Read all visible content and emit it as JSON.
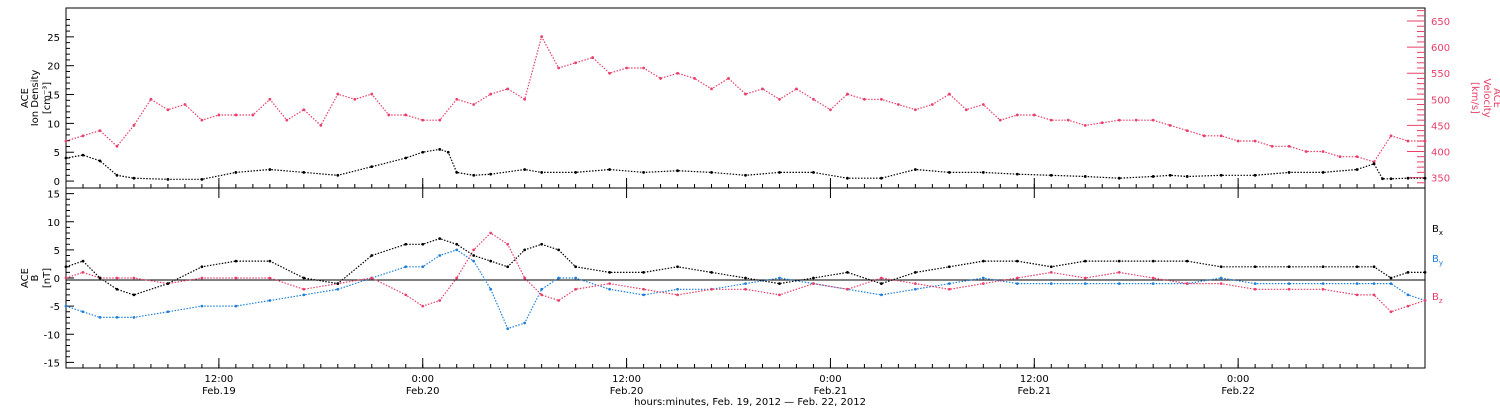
{
  "colors": {
    "density": "#000000",
    "velocity": "#e8406a",
    "bx": "#000000",
    "by": "#1f7fd8",
    "bz": "#e8406a"
  },
  "chart_data": [
    {
      "type": "scatter",
      "panel": "top",
      "ylabel_left": [
        "ACE",
        "Ion Density",
        "[cm⁻³]"
      ],
      "ylabel_right": [
        "ACE",
        "Velocity",
        "[km/s]"
      ],
      "left_axis": {
        "ylim": [
          -1.2,
          30
        ],
        "ticks": [
          0,
          5,
          10,
          15,
          20,
          25
        ]
      },
      "right_axis": {
        "ylim": [
          330,
          675
        ],
        "ticks": [
          350,
          400,
          450,
          500,
          550,
          600,
          650
        ]
      },
      "x_hours_since_start": {
        "xlim": [
          0,
          80
        ]
      },
      "series": [
        {
          "name": "Ion Density",
          "axis": "left",
          "x": [
            0,
            1,
            2,
            3,
            4,
            6,
            8,
            10,
            12,
            14,
            16,
            18,
            20,
            21,
            22,
            22.5,
            23,
            24,
            25,
            27,
            28,
            30,
            32,
            34,
            36,
            38,
            40,
            42,
            44,
            46,
            48,
            50,
            52,
            54,
            56,
            58,
            60,
            62,
            64,
            65,
            66,
            68,
            70,
            72,
            74,
            76,
            77,
            77.5,
            78,
            79,
            80
          ],
          "y": [
            4,
            4.5,
            3.5,
            1,
            0.5,
            0.3,
            0.3,
            1.5,
            2,
            1.5,
            1,
            2.5,
            4,
            5,
            5.5,
            5,
            1.5,
            1,
            1.2,
            2,
            1.5,
            1.5,
            2,
            1.5,
            1.8,
            1.5,
            1,
            1.5,
            1.5,
            0.5,
            0.5,
            2,
            1.5,
            1.5,
            1.2,
            1,
            0.8,
            0.5,
            0.8,
            1,
            0.8,
            1,
            1,
            1.5,
            1.5,
            2,
            3,
            0.4,
            0.4,
            0.5,
            0.5
          ]
        },
        {
          "name": "Velocity",
          "axis": "right",
          "x": [
            0,
            1,
            2,
            3,
            4,
            5,
            6,
            7,
            8,
            9,
            10,
            11,
            12,
            13,
            14,
            15,
            16,
            17,
            18,
            19,
            20,
            21,
            22,
            23,
            24,
            25,
            26,
            27,
            28,
            29,
            30,
            31,
            32,
            33,
            34,
            35,
            36,
            37,
            38,
            39,
            40,
            41,
            42,
            43,
            44,
            45,
            46,
            47,
            48,
            49,
            50,
            51,
            52,
            53,
            54,
            55,
            56,
            57,
            58,
            59,
            60,
            61,
            62,
            63,
            64,
            65,
            66,
            67,
            68,
            69,
            70,
            71,
            72,
            73,
            74,
            75,
            76,
            77,
            78,
            79,
            80
          ],
          "y": [
            420,
            430,
            440,
            410,
            450,
            500,
            480,
            490,
            460,
            470,
            470,
            470,
            500,
            460,
            480,
            450,
            510,
            500,
            510,
            470,
            470,
            460,
            460,
            500,
            490,
            510,
            520,
            500,
            620,
            560,
            570,
            580,
            550,
            560,
            560,
            540,
            550,
            540,
            520,
            540,
            510,
            520,
            500,
            520,
            500,
            480,
            510,
            500,
            500,
            490,
            480,
            490,
            510,
            480,
            490,
            460,
            470,
            470,
            460,
            460,
            450,
            455,
            460,
            460,
            460,
            450,
            440,
            430,
            430,
            420,
            420,
            410,
            410,
            400,
            400,
            390,
            390,
            380,
            430,
            420,
            420
          ]
        }
      ]
    },
    {
      "type": "scatter",
      "panel": "bottom",
      "ylabel_left": [
        "ACE",
        "B",
        "[nT]"
      ],
      "left_axis": {
        "ylim": [
          -16,
          16
        ],
        "ticks": [
          -15,
          -10,
          -5,
          0,
          5,
          10,
          15
        ]
      },
      "x_hours_since_start": {
        "xlim": [
          0,
          80
        ]
      },
      "series": [
        {
          "name": "Bx",
          "label": "B",
          "x": [
            0,
            1,
            2,
            3,
            4,
            6,
            8,
            10,
            12,
            14,
            16,
            18,
            20,
            21,
            22,
            23,
            24,
            25,
            26,
            27,
            28,
            29,
            30,
            32,
            34,
            36,
            38,
            40,
            42,
            44,
            46,
            48,
            50,
            52,
            54,
            56,
            58,
            60,
            62,
            64,
            66,
            68,
            70,
            72,
            74,
            76,
            77,
            78,
            79,
            80
          ],
          "y": [
            2,
            3,
            0,
            -2,
            -3,
            -1,
            2,
            3,
            3,
            0,
            -1,
            4,
            6,
            6,
            7,
            6,
            4,
            3,
            2,
            5,
            6,
            5,
            2,
            1,
            1,
            2,
            1,
            0,
            -1,
            0,
            1,
            -1,
            1,
            2,
            3,
            3,
            2,
            3,
            3,
            3,
            3,
            2,
            2,
            2,
            2,
            2,
            2,
            0,
            1,
            1
          ]
        },
        {
          "name": "By",
          "label": "B",
          "x": [
            0,
            1,
            2,
            3,
            4,
            6,
            8,
            10,
            12,
            14,
            16,
            18,
            20,
            21,
            22,
            23,
            24,
            25,
            26,
            27,
            28,
            29,
            30,
            32,
            34,
            36,
            38,
            40,
            42,
            44,
            46,
            48,
            50,
            52,
            54,
            56,
            58,
            60,
            62,
            64,
            66,
            68,
            70,
            72,
            74,
            76,
            77,
            78,
            79,
            80
          ],
          "y": [
            -5,
            -6,
            -7,
            -7,
            -7,
            -6,
            -5,
            -5,
            -4,
            -3,
            -2,
            0,
            2,
            2,
            4,
            5,
            3,
            -2,
            -9,
            -8,
            -2,
            0,
            0,
            -2,
            -3,
            -2,
            -2,
            -1,
            0,
            -1,
            -2,
            -3,
            -2,
            -1,
            0,
            -1,
            -1,
            -1,
            -1,
            -1,
            -1,
            0,
            -1,
            -1,
            -1,
            -1,
            -1,
            -1,
            -3,
            -4
          ]
        },
        {
          "name": "Bz",
          "label": "B",
          "x": [
            0,
            1,
            2,
            3,
            4,
            6,
            8,
            10,
            12,
            14,
            16,
            18,
            20,
            21,
            22,
            23,
            24,
            25,
            26,
            27,
            28,
            29,
            30,
            32,
            34,
            36,
            38,
            40,
            42,
            44,
            46,
            48,
            50,
            52,
            54,
            56,
            58,
            60,
            62,
            64,
            66,
            68,
            70,
            72,
            74,
            76,
            77,
            78,
            79,
            80
          ],
          "y": [
            0,
            1,
            0,
            0,
            0,
            -1,
            0,
            0,
            0,
            -2,
            -1,
            0,
            -3,
            -5,
            -4,
            0,
            5,
            8,
            6,
            0,
            -3,
            -4,
            -2,
            -1,
            -2,
            -3,
            -2,
            -2,
            -3,
            -1,
            -2,
            0,
            -1,
            -2,
            -1,
            0,
            1,
            0,
            1,
            0,
            -1,
            -1,
            -2,
            -2,
            -2,
            -3,
            -3,
            -6,
            -5,
            -4
          ]
        }
      ]
    }
  ],
  "x_axis": {
    "ticks": [
      {
        "time": "12:00",
        "date": "Feb.19"
      },
      {
        "time": "0:00",
        "date": "Feb.20"
      },
      {
        "time": "12:00",
        "date": "Feb.20"
      },
      {
        "time": "0:00",
        "date": "Feb.21"
      },
      {
        "time": "12:00",
        "date": "Feb.21"
      },
      {
        "time": "0:00",
        "date": "Feb.22"
      }
    ],
    "title": "hours:minutes, Feb. 19, 2012 — Feb. 22, 2012"
  },
  "legend_bottom": [
    {
      "label": "B",
      "sub": "x"
    },
    {
      "label": "B",
      "sub": "y"
    },
    {
      "label": "B",
      "sub": "z"
    }
  ]
}
